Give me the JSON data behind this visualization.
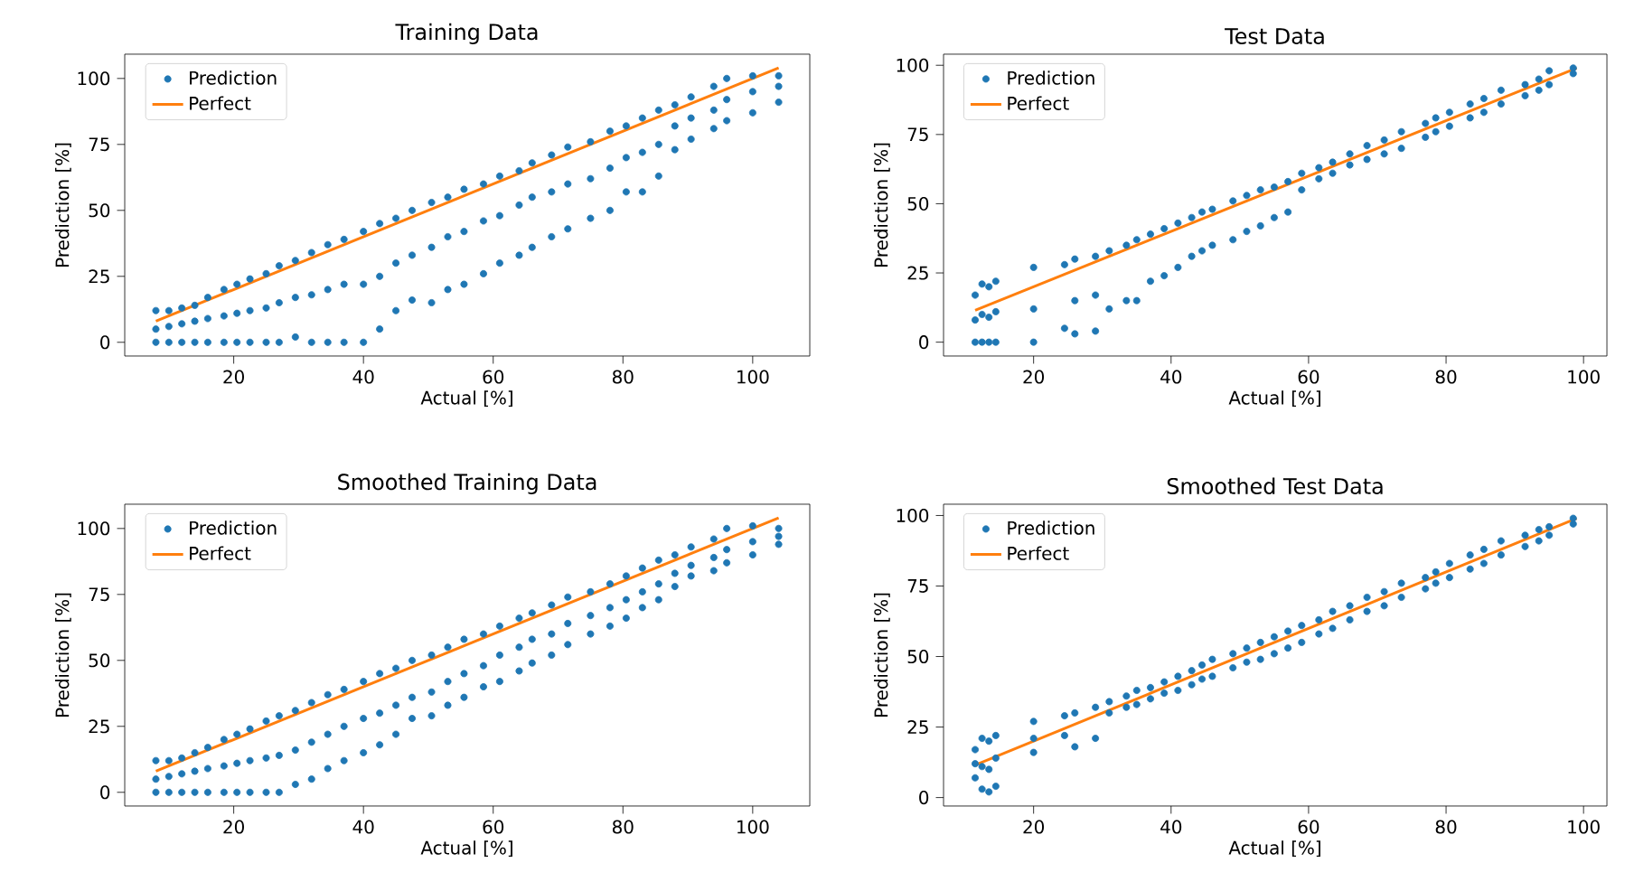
{
  "chart_data": [
    {
      "type": "scatter",
      "title": "Training Data",
      "xlabel": "Actual [%]",
      "ylabel": "Prediction [%]",
      "xlim": [
        3.2,
        108.8
      ],
      "ylim": [
        -5.2,
        109.2
      ],
      "xticks": [
        20,
        40,
        60,
        80,
        100
      ],
      "yticks": [
        0,
        25,
        50,
        75,
        100
      ],
      "legend": "top left",
      "grid": false,
      "series": [
        {
          "name": "Prediction",
          "marker": "circle",
          "color": "#1f77b4",
          "x": [
            8,
            8,
            8,
            10,
            10,
            10,
            12,
            12,
            12,
            14,
            14,
            14,
            16,
            16,
            16,
            18.5,
            18.5,
            18.5,
            20.5,
            20.5,
            20.5,
            22.5,
            22.5,
            22.5,
            25,
            25,
            25,
            27,
            27,
            27,
            29.5,
            29.5,
            29.5,
            32,
            32,
            32,
            34.5,
            34.5,
            34.5,
            37,
            37,
            37,
            40,
            40,
            40,
            42.5,
            42.5,
            42.5,
            45,
            45,
            45,
            47.5,
            47.5,
            47.5,
            50.5,
            50.5,
            50.5,
            53,
            53,
            53,
            55.5,
            55.5,
            55.5,
            58.5,
            58.5,
            58.5,
            61,
            61,
            61,
            64,
            64,
            64,
            66,
            66,
            66,
            69,
            69,
            69,
            71.5,
            71.5,
            71.5,
            75,
            75,
            75,
            78,
            78,
            78,
            80.5,
            80.5,
            80.5,
            83,
            83,
            83,
            85.5,
            85.5,
            85.5,
            88,
            88,
            88,
            90.5,
            90.5,
            90.5,
            94,
            94,
            94,
            96,
            96,
            96,
            100,
            100,
            100,
            104,
            104,
            104
          ],
          "values": [
            0,
            5,
            12,
            0,
            6,
            12,
            0,
            7,
            13,
            0,
            8,
            14,
            0,
            9,
            17,
            0,
            10,
            20,
            0,
            11,
            22,
            0,
            12,
            24,
            0,
            13,
            26,
            0,
            15,
            29,
            2,
            17,
            31,
            0,
            18,
            34,
            0,
            20,
            37,
            0,
            22,
            39,
            0,
            22,
            42,
            5,
            25,
            45,
            12,
            30,
            47,
            16,
            33,
            50,
            15,
            36,
            53,
            20,
            40,
            55,
            22,
            42,
            58,
            26,
            46,
            60,
            30,
            48,
            63,
            33,
            52,
            65,
            36,
            55,
            68,
            40,
            57,
            71,
            43,
            60,
            74,
            47,
            62,
            76,
            50,
            66,
            80,
            57,
            70,
            82,
            57,
            72,
            85,
            63,
            75,
            88,
            73,
            82,
            90,
            77,
            85,
            93,
            81,
            88,
            97,
            84,
            92,
            100,
            87,
            95,
            101,
            91,
            97,
            101
          ]
        },
        {
          "name": "Perfect",
          "type": "line",
          "marker": "none",
          "color": "#ff7f0e",
          "x": [
            8,
            104
          ],
          "values": [
            8,
            104
          ]
        }
      ]
    },
    {
      "type": "scatter",
      "title": "Test Data",
      "xlabel": "Actual [%]",
      "ylabel": "Prediction [%]",
      "xlim": [
        6.9,
        103.4
      ],
      "ylim": [
        -5,
        104
      ],
      "xticks": [
        20,
        40,
        60,
        80,
        100
      ],
      "yticks": [
        0,
        25,
        50,
        75,
        100
      ],
      "legend": "top left",
      "grid": false,
      "series": [
        {
          "name": "Prediction",
          "marker": "circle",
          "color": "#1f77b4",
          "x": [
            11.5,
            11.5,
            11.5,
            12.5,
            12.5,
            12.5,
            13.5,
            13.5,
            13.5,
            14.5,
            14.5,
            14.5,
            20,
            20,
            20,
            24.5,
            24.5,
            26,
            26,
            26,
            29,
            29,
            29,
            31,
            31,
            33.5,
            33.5,
            35,
            35,
            37,
            37,
            39,
            39,
            41,
            41,
            43,
            43,
            44.5,
            44.5,
            46,
            46,
            49,
            49,
            51,
            51,
            53,
            53,
            55,
            55,
            57,
            57,
            59,
            59,
            61.5,
            61.5,
            63.5,
            63.5,
            66,
            66,
            68.5,
            68.5,
            71,
            71,
            73.5,
            73.5,
            77,
            77,
            78.5,
            78.5,
            80.5,
            80.5,
            83.5,
            83.5,
            85.5,
            85.5,
            88,
            88,
            91.5,
            91.5,
            93.5,
            93.5,
            95,
            95,
            98.5,
            98.5
          ],
          "values": [
            0,
            8,
            17,
            0,
            10,
            21,
            0,
            9,
            20,
            0,
            11,
            22,
            0,
            12,
            27,
            5,
            28,
            3,
            15,
            30,
            4,
            17,
            31,
            12,
            33,
            15,
            35,
            15,
            37,
            22,
            39,
            24,
            41,
            27,
            43,
            31,
            45,
            33,
            47,
            35,
            48,
            37,
            51,
            40,
            53,
            42,
            55,
            45,
            56,
            47,
            58,
            55,
            61,
            59,
            63,
            61,
            65,
            64,
            68,
            66,
            71,
            68,
            73,
            70,
            76,
            74,
            79,
            76,
            81,
            78,
            83,
            81,
            86,
            83,
            88,
            86,
            91,
            89,
            93,
            91,
            95,
            93,
            98,
            97,
            99
          ]
        },
        {
          "name": "Perfect",
          "type": "line",
          "marker": "none",
          "color": "#ff7f0e",
          "x": [
            11.5,
            99
          ],
          "values": [
            11.5,
            99
          ]
        }
      ]
    },
    {
      "type": "scatter",
      "title": "Smoothed Training Data",
      "xlabel": "Actual [%]",
      "ylabel": "Prediction [%]",
      "xlim": [
        3.2,
        108.8
      ],
      "ylim": [
        -5.2,
        109.2
      ],
      "xticks": [
        20,
        40,
        60,
        80,
        100
      ],
      "yticks": [
        0,
        25,
        50,
        75,
        100
      ],
      "legend": "top left",
      "grid": false,
      "series": [
        {
          "name": "Prediction",
          "marker": "circle",
          "color": "#1f77b4",
          "x": [
            8,
            8,
            8,
            10,
            10,
            10,
            12,
            12,
            12,
            14,
            14,
            14,
            16,
            16,
            16,
            18.5,
            18.5,
            18.5,
            20.5,
            20.5,
            20.5,
            22.5,
            22.5,
            22.5,
            25,
            25,
            25,
            27,
            27,
            27,
            29.5,
            29.5,
            29.5,
            32,
            32,
            32,
            34.5,
            34.5,
            34.5,
            37,
            37,
            37,
            40,
            40,
            40,
            42.5,
            42.5,
            42.5,
            45,
            45,
            45,
            47.5,
            47.5,
            47.5,
            50.5,
            50.5,
            50.5,
            53,
            53,
            53,
            55.5,
            55.5,
            55.5,
            58.5,
            58.5,
            58.5,
            61,
            61,
            61,
            64,
            64,
            64,
            66,
            66,
            66,
            69,
            69,
            69,
            71.5,
            71.5,
            71.5,
            75,
            75,
            75,
            78,
            78,
            78,
            80.5,
            80.5,
            80.5,
            83,
            83,
            83,
            85.5,
            85.5,
            85.5,
            88,
            88,
            88,
            90.5,
            90.5,
            90.5,
            94,
            94,
            94,
            96,
            96,
            96,
            100,
            100,
            100,
            104,
            104,
            104
          ],
          "values": [
            0,
            5,
            12,
            0,
            6,
            12,
            0,
            7,
            13,
            0,
            8,
            15,
            0,
            9,
            17,
            0,
            10,
            20,
            0,
            11,
            22,
            0,
            12,
            24,
            0,
            13,
            27,
            0,
            14,
            29,
            3,
            16,
            31,
            5,
            19,
            34,
            9,
            22,
            37,
            12,
            25,
            39,
            15,
            28,
            42,
            18,
            30,
            45,
            22,
            33,
            47,
            28,
            36,
            50,
            29,
            38,
            52,
            33,
            42,
            55,
            36,
            45,
            58,
            40,
            48,
            60,
            42,
            52,
            63,
            46,
            55,
            66,
            49,
            58,
            68,
            52,
            60,
            71,
            56,
            64,
            74,
            60,
            67,
            76,
            63,
            70,
            79,
            66,
            73,
            82,
            70,
            76,
            85,
            73,
            79,
            88,
            78,
            83,
            90,
            82,
            86,
            93,
            84,
            89,
            96,
            87,
            92,
            100,
            90,
            95,
            101,
            94,
            97,
            100
          ]
        },
        {
          "name": "Perfect",
          "type": "line",
          "marker": "none",
          "color": "#ff7f0e",
          "x": [
            8,
            104
          ],
          "values": [
            8,
            104
          ]
        }
      ]
    },
    {
      "type": "scatter",
      "title": "Smoothed Test Data",
      "xlabel": "Actual [%]",
      "ylabel": "Prediction [%]",
      "xlim": [
        6.9,
        103.4
      ],
      "ylim": [
        -3,
        104
      ],
      "xticks": [
        20,
        40,
        60,
        80,
        100
      ],
      "yticks": [
        0,
        25,
        50,
        75,
        100
      ],
      "legend": "top left",
      "grid": false,
      "series": [
        {
          "name": "Prediction",
          "marker": "circle",
          "color": "#1f77b4",
          "x": [
            11.5,
            11.5,
            11.5,
            12.5,
            12.5,
            12.5,
            13.5,
            13.5,
            13.5,
            14.5,
            14.5,
            14.5,
            20,
            20,
            20,
            24.5,
            24.5,
            26,
            26,
            29,
            29,
            31,
            31,
            33.5,
            33.5,
            35,
            35,
            37,
            37,
            39,
            39,
            41,
            41,
            43,
            43,
            44.5,
            44.5,
            46,
            46,
            49,
            49,
            51,
            51,
            53,
            53,
            55,
            55,
            57,
            57,
            59,
            59,
            61.5,
            61.5,
            63.5,
            63.5,
            66,
            66,
            68.5,
            68.5,
            71,
            71,
            73.5,
            73.5,
            77,
            77,
            78.5,
            78.5,
            80.5,
            80.5,
            83.5,
            83.5,
            85.5,
            85.5,
            88,
            88,
            91.5,
            91.5,
            93.5,
            93.5,
            95,
            95,
            98.5,
            98.5
          ],
          "values": [
            7,
            12,
            17,
            3,
            11,
            21,
            2,
            10,
            20,
            4,
            14,
            22,
            16,
            21,
            27,
            22,
            29,
            18,
            30,
            21,
            32,
            30,
            34,
            32,
            36,
            33,
            38,
            35,
            39,
            37,
            41,
            38,
            43,
            40,
            45,
            42,
            47,
            43,
            49,
            46,
            51,
            48,
            53,
            49,
            55,
            51,
            57,
            53,
            59,
            55,
            61,
            58,
            63,
            60,
            66,
            63,
            68,
            66,
            71,
            68,
            73,
            71,
            76,
            74,
            78,
            76,
            80,
            78,
            83,
            81,
            86,
            83,
            88,
            86,
            91,
            89,
            93,
            91,
            95,
            93,
            96,
            97,
            99
          ]
        },
        {
          "name": "Perfect",
          "type": "line",
          "marker": "none",
          "color": "#ff7f0e",
          "x": [
            11.5,
            99
          ],
          "values": [
            11.5,
            99
          ]
        }
      ]
    }
  ]
}
